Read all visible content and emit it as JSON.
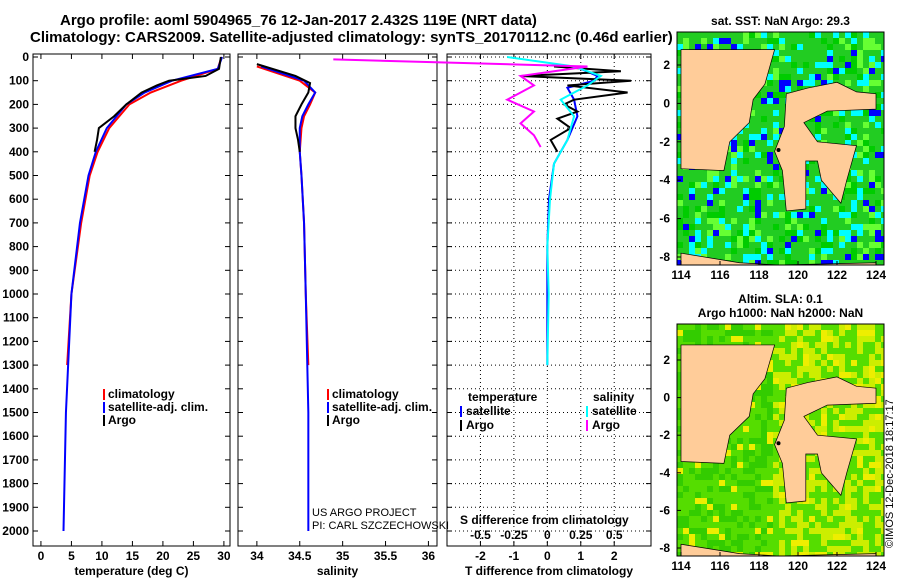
{
  "title_line1": "Argo profile: aoml 5904965_76 12-Jan-2017 2.432S 119E (NRT data)",
  "title_line2": "Climatology: CARS2009. Satellite-adjusted climatology: synTS_20170112.nc (0.46d earlier)",
  "project_line1": "US ARGO PROJECT",
  "project_line2": "PI: CARL SZCZECHOWSKI",
  "imos_credit": "©IMOS 12-Dec-2018 18:17:17",
  "colors": {
    "climatology": "#ff0000",
    "satellite": "#0000ff",
    "argo": "#000000",
    "sal_satellite": "#00ffff",
    "sal_argo": "#ff00ff",
    "land": "#ffcc99"
  },
  "chart_data": [
    {
      "type": "line",
      "name": "temperature",
      "xlabel": "temperature (deg C)",
      "ylabel": "",
      "xlim": [
        -1.3,
        31
      ],
      "ylim": [
        2065,
        -10
      ],
      "xticks": [
        0,
        5,
        10,
        15,
        20,
        25,
        30
      ],
      "yticks": [
        0,
        100,
        200,
        300,
        400,
        500,
        600,
        700,
        800,
        900,
        1000,
        1100,
        1200,
        1300,
        1400,
        1500,
        1600,
        1700,
        1800,
        1900,
        2000
      ],
      "legend": [
        "climatology",
        "satellite-adj. clim.",
        "Argo"
      ],
      "series": [
        {
          "name": "climatology",
          "depth": [
            0,
            50,
            100,
            150,
            200,
            300,
            400,
            500,
            700,
            1000,
            1300
          ],
          "values": [
            29.6,
            29,
            23,
            18,
            14.5,
            11.2,
            9.3,
            8,
            6.6,
            5,
            4.3
          ]
        },
        {
          "name": "satellite-adj. clim.",
          "depth": [
            0,
            50,
            100,
            150,
            200,
            300,
            400,
            500,
            700,
            1000,
            1500,
            2000
          ],
          "values": [
            29.7,
            29,
            21.5,
            17,
            14,
            10.8,
            9,
            7.8,
            6.4,
            5,
            4.1,
            3.7
          ]
        },
        {
          "name": "Argo",
          "depth": [
            0,
            50,
            80,
            100,
            120,
            150,
            200,
            250,
            300,
            350,
            400
          ],
          "values": [
            29.5,
            29.2,
            27,
            21,
            19,
            16.5,
            14,
            12,
            9.5,
            9.2,
            8.8
          ]
        }
      ]
    },
    {
      "type": "line",
      "name": "salinity",
      "xlabel": "salinity",
      "xlim": [
        33.78,
        36.1
      ],
      "xticks": [
        34,
        34.5,
        35,
        35.5,
        36
      ],
      "legend": [
        "climatology",
        "satellite-adj. clim.",
        "Argo"
      ],
      "series": [
        {
          "name": "climatology",
          "depth": [
            40,
            100,
            150,
            200,
            250,
            300,
            400,
            500,
            700,
            1000,
            1300
          ],
          "values": [
            34.0,
            34.5,
            34.68,
            34.62,
            34.55,
            34.52,
            34.5,
            34.52,
            34.55,
            34.57,
            34.6
          ]
        },
        {
          "name": "satellite-adj. clim.",
          "depth": [
            40,
            100,
            150,
            200,
            250,
            300,
            400,
            500,
            700,
            1000,
            1500,
            2000
          ],
          "values": [
            34.05,
            34.55,
            34.68,
            34.6,
            34.53,
            34.5,
            34.5,
            34.52,
            34.55,
            34.57,
            34.6,
            34.6
          ]
        },
        {
          "name": "Argo",
          "depth": [
            30,
            80,
            110,
            150,
            200,
            250,
            300,
            350,
            400
          ],
          "values": [
            34.0,
            34.45,
            34.62,
            34.6,
            34.52,
            34.45,
            34.45,
            34.48,
            34.5
          ]
        }
      ]
    },
    {
      "type": "line",
      "name": "difference",
      "xlabel": "T difference from climatology",
      "xlabel2": "S difference from climatology",
      "xlim": [
        -3,
        3.1
      ],
      "xticks": [
        -2,
        -1,
        0,
        1,
        2
      ],
      "xticks2": [
        "-0.5",
        "-0.25",
        "0",
        "0.25",
        "0.5"
      ],
      "legend_temperature_title": "temperature",
      "legend_salinity_title": "salinity",
      "legend": [
        "satellite",
        "Argo",
        "satellite",
        "Argo"
      ],
      "series": [
        {
          "name": "T satellite",
          "depth": [
            50,
            80,
            100,
            130,
            180,
            250,
            350,
            450,
            600,
            800,
            1000,
            1300
          ],
          "values": [
            1,
            1.5,
            1.4,
            0.6,
            0.8,
            0.9,
            0.6,
            0.2,
            0.05,
            0,
            0,
            0
          ]
        },
        {
          "name": "T Argo",
          "depth": [
            40,
            60,
            80,
            100,
            120,
            150,
            180,
            200,
            230,
            260,
            300,
            350,
            400
          ],
          "values": [
            0.2,
            2.2,
            -0.8,
            2.5,
            0.6,
            2.4,
            0.8,
            0.5,
            0.9,
            0.3,
            0.7,
            0.1,
            0.3
          ]
        },
        {
          "name": "S satellite",
          "depth": [
            0,
            40,
            80,
            120,
            180,
            250,
            350,
            450,
            600,
            800,
            1000,
            1300
          ],
          "values": [
            -0.3,
            0.2,
            0.4,
            0.3,
            0.1,
            0.2,
            0.15,
            0.05,
            0.02,
            0,
            0.01,
            0
          ]
        },
        {
          "name": "S Argo",
          "depth": [
            10,
            40,
            80,
            120,
            180,
            230,
            280,
            330,
            380
          ],
          "values": [
            -1.6,
            0.3,
            -0.2,
            -0.1,
            -0.3,
            -0.1,
            -0.2,
            -0.1,
            -0.05
          ]
        }
      ]
    }
  ],
  "map1": {
    "title": "sat. SST: NaN Argo: 29.3",
    "xticks": [
      114,
      116,
      118,
      120,
      122,
      124
    ],
    "yticks": [
      2,
      0,
      -2,
      -4,
      -6,
      -8
    ]
  },
  "map2": {
    "title1": "Altim. SLA: 0.1",
    "title2": "Argo h1000: NaN h2000: NaN",
    "xticks": [
      114,
      116,
      118,
      120,
      122,
      124
    ],
    "yticks": [
      2,
      0,
      -2,
      -4,
      -6,
      -8
    ]
  }
}
